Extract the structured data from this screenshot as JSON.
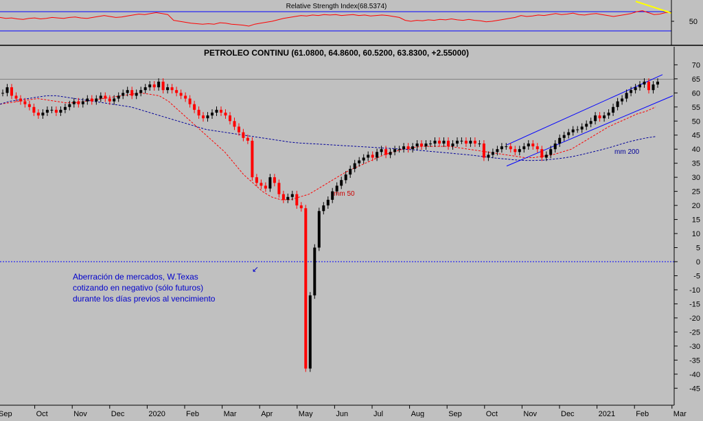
{
  "chart_data": [
    {
      "panel": "rsi",
      "type": "line",
      "title": "Relative Strength Index(68.5374)",
      "y_ticks": [
        50
      ],
      "upper_level": 70,
      "lower_level": 30,
      "colors": {
        "line": "#ff0000",
        "levels": "#0000ff",
        "trend": "#ffff00"
      },
      "series": [
        {
          "values": [
            58,
            56,
            57,
            55,
            54,
            56,
            57,
            55,
            56,
            58,
            57,
            56,
            58,
            59,
            57,
            56,
            58,
            60,
            62,
            60,
            58,
            59,
            61,
            63,
            65,
            64,
            66,
            68,
            66,
            64,
            52,
            50,
            48,
            46,
            45,
            44,
            45,
            44,
            47,
            46,
            44,
            43,
            42,
            40,
            44,
            46,
            48,
            50,
            53,
            56,
            58,
            60,
            62,
            61,
            63,
            62,
            64,
            63,
            64,
            62,
            63,
            64,
            62,
            63,
            61,
            62,
            63,
            62,
            60,
            58,
            52,
            50,
            52,
            51,
            53,
            52,
            54,
            53,
            55,
            53,
            52,
            54,
            52,
            51,
            49,
            50,
            52,
            54,
            56,
            58,
            62,
            60,
            61,
            63,
            62,
            64,
            66,
            64,
            65,
            67,
            64,
            63,
            65,
            66,
            64,
            62,
            60,
            62,
            64,
            66,
            70,
            72,
            68,
            64,
            65,
            68,
            69
          ]
        }
      ]
    },
    {
      "panel": "price",
      "type": "candlestick",
      "title": "PETROLEO CONTINU (61.0800, 64.8600, 60.5200, 63.8300, +2.55000)",
      "ylim": [
        -48,
        74
      ],
      "y_ticks": [
        70,
        65,
        60,
        55,
        50,
        45,
        40,
        35,
        30,
        25,
        20,
        15,
        10,
        5,
        0,
        -5,
        -10,
        -15,
        -20,
        -25,
        -30,
        -35,
        -40,
        -45
      ],
      "x_labels": [
        "Sep",
        "Oct",
        "Nov",
        "Dec",
        "2020",
        "Feb",
        "Mar",
        "Apr",
        "May",
        "Jun",
        "Jul",
        "Aug",
        "Sep",
        "Oct",
        "Nov",
        "Dec",
        "2021",
        "Feb",
        "Mar"
      ],
      "close": [
        60,
        62,
        59,
        58,
        57,
        56,
        55,
        53,
        52,
        53,
        54,
        54,
        53,
        54,
        55,
        56,
        57,
        56,
        57,
        58,
        57,
        58,
        59,
        58,
        57,
        58,
        59,
        60,
        61,
        59,
        60,
        61,
        62,
        63,
        62,
        64,
        61,
        62,
        61,
        60,
        59,
        58,
        56,
        54,
        52,
        51,
        52,
        53,
        54,
        53,
        52,
        50,
        48,
        46,
        44,
        43,
        30,
        28,
        27,
        26,
        30,
        28,
        24,
        22,
        23,
        24,
        20,
        19,
        -38,
        -12,
        5,
        18,
        20,
        22,
        25,
        27,
        29,
        31,
        33,
        35,
        36,
        37,
        38,
        37,
        39,
        40,
        38,
        39,
        40,
        40,
        41,
        40,
        41,
        42,
        41,
        42,
        42,
        43,
        42,
        43,
        41,
        42,
        43,
        43,
        42,
        43,
        42,
        42,
        37,
        38,
        39,
        40,
        41,
        41,
        40,
        39,
        40,
        41,
        42,
        41,
        40,
        37,
        38,
        40,
        42,
        44,
        45,
        46,
        47,
        47,
        48,
        49,
        50,
        52,
        51,
        52,
        53,
        55,
        57,
        58,
        60,
        61,
        62,
        63,
        64,
        61,
        63,
        64
      ],
      "series": [
        {
          "values": [
            56,
            56.5,
            57,
            57.5,
            58,
            57.5,
            57,
            56.5,
            56.5,
            57,
            57.5,
            58,
            58.5,
            59,
            59.5,
            60,
            59.5,
            59,
            57,
            54,
            51,
            48,
            45,
            42,
            39,
            35,
            31,
            28,
            25,
            23,
            22,
            22,
            23,
            24,
            26,
            28,
            30,
            32,
            33.5,
            35,
            36.5,
            38,
            39,
            40,
            40.5,
            41,
            41,
            41,
            41,
            40.5,
            40,
            39.5,
            39,
            38.5,
            38,
            37.5,
            37,
            37,
            37.5,
            38,
            39,
            40,
            42,
            44,
            46,
            48,
            49.5,
            51,
            52.5,
            53.5,
            55
          ]
        },
        {
          "values": [
            56,
            57,
            57.5,
            58,
            58.5,
            59,
            59,
            58.5,
            58,
            57.5,
            57,
            56.5,
            56,
            55.5,
            55,
            54,
            53,
            52,
            51,
            50,
            49,
            48,
            47,
            46.5,
            46,
            45.5,
            45,
            44.5,
            44,
            43.5,
            43,
            42.5,
            42.2,
            42,
            41.8,
            41.6,
            41.4,
            41.2,
            41,
            40.8,
            40.6,
            40.4,
            40.2,
            40,
            39.8,
            39.5,
            39.2,
            38.9,
            38.6,
            38.3,
            38,
            37.6,
            37.2,
            36.8,
            36.5,
            36.2,
            36,
            36,
            36.1,
            36.4,
            36.8,
            37.3,
            38,
            38.8,
            39.6,
            40.5,
            41.5,
            42.5,
            43.3,
            44,
            44.5
          ]
        }
      ],
      "annotations": [
        "mm 50",
        "mm 200",
        "Aberración de mercados, W.Texas",
        "cotizando en negativo (sólo futuros)",
        "durante los días previos al vencimiento"
      ],
      "colors": {
        "up": "#000000",
        "down": "#ff0000",
        "mm50": "#ff0000",
        "mm200": "#000099",
        "channel": "#0000ff",
        "zero_line": "#0000ff",
        "note": "#0000cc"
      }
    }
  ]
}
